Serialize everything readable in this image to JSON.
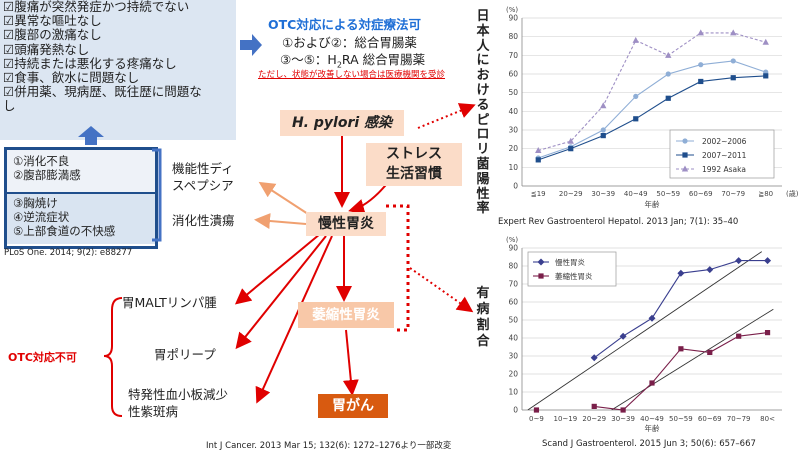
{
  "checklist": {
    "items": [
      "☑腹痛が突然発症かつ持続でない",
      "☑異常な嘔吐なし",
      "☑腹部の激痛なし",
      "☑頭痛発熱なし",
      "☑持続または悪化する疼痛なし",
      "☑食事、飲水に問題なし",
      "☑併用薬、現病歴、既往歴に問題な",
      "し"
    ]
  },
  "symptoms": {
    "group1": [
      "①消化不良",
      "②腹部膨満感"
    ],
    "group2": [
      "③胸焼け",
      "④逆流症状",
      "⑤上部食道の不快感"
    ],
    "citation": "PLoS One. 2014; 9(2): e88277"
  },
  "otc": {
    "title": "OTC対応による対症療法可",
    "line1": "①および②：総合胃腸薬",
    "line2_pre": "③～⑤：H",
    "line2_sub": "2",
    "line2_post": "RA 総合胃腸薬",
    "note": "ただし、状態が改善しない場合は医療機関を受診"
  },
  "flow": {
    "hpylori": "H. pylori 感染",
    "stress": [
      "ストレス",
      "生活習慣"
    ],
    "chronic": "慢性胃炎",
    "atrophic": "萎縮性胃炎",
    "cancer": "胃がん",
    "functional": [
      "機能性ディ",
      "スペプシア"
    ],
    "ulcer": "消化性潰瘍",
    "malt": "胃MALTリンパ腫",
    "polyp": "胃ポリープ",
    "itp": [
      "特発性血小板減少",
      "性紫斑病"
    ],
    "otc_no": "OTC対応不可",
    "citation": "Int J Cancer. 2013 Mar 15; 132(6): 1272–1276より一部改変"
  },
  "chart_top_title": "日本人におけるピロリ菌陽性率",
  "chart_bottom_title": "有病割合",
  "chart_data": [
    {
      "type": "line",
      "yunit": "(%)",
      "xlabel": "年齢",
      "xunit": "(歳)",
      "categories": [
        "≦19",
        "20~29",
        "30~39",
        "40~49",
        "50~59",
        "60~69",
        "70~79",
        "≧80"
      ],
      "ylim": [
        0,
        90
      ],
      "yticks": [
        0,
        10,
        20,
        30,
        40,
        50,
        60,
        70,
        80,
        90
      ],
      "legend_position": "bottom-right",
      "series": [
        {
          "name": "2002~2006",
          "color": "#8faed6",
          "marker": "circle",
          "dashed": false,
          "values": [
            15,
            21,
            30,
            48,
            60,
            65,
            67,
            61
          ]
        },
        {
          "name": "2007~2011",
          "color": "#1f4e8c",
          "marker": "square",
          "dashed": false,
          "values": [
            14,
            20,
            27,
            36,
            47,
            56,
            58,
            59
          ]
        },
        {
          "name": "1992 Asaka",
          "color": "#9e8fc4",
          "marker": "triangle",
          "dashed": true,
          "values": [
            19,
            24,
            43,
            78,
            70,
            82,
            82,
            77
          ]
        }
      ],
      "citation": "Expert Rev Gastroenterol Hepatol. 2013 Jan; 7(1): 35–40"
    },
    {
      "type": "line",
      "yunit": "(%)",
      "xlabel": "年齢",
      "categories": [
        "0~9",
        "10~19",
        "20~29",
        "30~39",
        "40~49",
        "50~59",
        "60~69",
        "70~79",
        "80<"
      ],
      "ylim": [
        0,
        90
      ],
      "yticks": [
        0,
        10,
        20,
        30,
        40,
        50,
        60,
        70,
        80,
        90
      ],
      "legend_position": "top-left",
      "series": [
        {
          "name": "慢性胃炎",
          "color": "#3a3f8f",
          "marker": "diamond",
          "values": [
            null,
            null,
            29,
            41,
            51,
            76,
            78,
            83,
            83
          ]
        },
        {
          "name": "萎縮性胃炎",
          "color": "#7a1f4a",
          "marker": "square",
          "values": [
            0,
            null,
            2,
            0,
            15,
            34,
            32,
            41,
            43
          ]
        }
      ],
      "trendlines": [
        {
          "from": [
            -0.3,
            0
          ],
          "to": [
            7.8,
            88
          ]
        },
        {
          "from": [
            2.6,
            0
          ],
          "to": [
            8.2,
            56
          ]
        }
      ],
      "citation": "Scand J Gastroenterol. 2015 Jun 3; 50(6): 657–667"
    }
  ]
}
